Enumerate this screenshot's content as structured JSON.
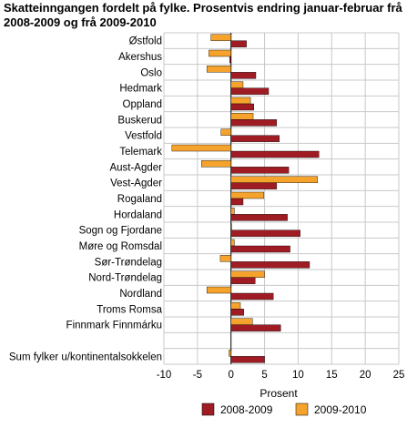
{
  "chart_data": {
    "type": "bar",
    "orientation": "horizontal",
    "title": "Skatteinngangen fordelt på fylke. Prosentvis endring januar-februar frå 2008-2009 og frå 2009-2010",
    "xlabel": "Prosent",
    "ylabel": "",
    "xlim": [
      -10,
      25
    ],
    "xticks": [
      -10,
      -5,
      0,
      5,
      10,
      15,
      20,
      25
    ],
    "grid": true,
    "legend_position": "bottom",
    "categories": [
      "Østfold",
      "Akershus",
      "Oslo",
      "Hedmark",
      "Oppland",
      "Buskerud",
      "Vestfold",
      "Telemark",
      "Aust-Agder",
      "Vest-Agder",
      "Rogaland",
      "Hordaland",
      "Sogn og Fjordane",
      "Møre og Romsdal",
      "Sør-Trøndelag",
      "Nord-Trøndelag",
      "Nordland",
      "Troms Romsa",
      "Finnmark Finnmárku",
      "",
      "Sum fylker u/kontinentalsokkelen"
    ],
    "series": [
      {
        "name": "2008-2009",
        "color": "#a01c24",
        "values": [
          2.3,
          -0.2,
          3.7,
          5.6,
          3.4,
          6.8,
          7.2,
          13.1,
          8.6,
          6.8,
          1.8,
          8.4,
          10.3,
          8.8,
          11.7,
          3.6,
          6.3,
          1.9,
          7.4,
          null,
          5.0
        ]
      },
      {
        "name": "2009-2010",
        "color": "#f5a32c",
        "values": [
          -3.0,
          -3.3,
          -3.6,
          1.8,
          2.9,
          3.3,
          -1.5,
          -8.8,
          -4.4,
          12.9,
          4.9,
          0.5,
          0.1,
          0.5,
          -1.6,
          5.0,
          -3.6,
          1.4,
          3.2,
          null,
          -0.3
        ]
      }
    ]
  }
}
